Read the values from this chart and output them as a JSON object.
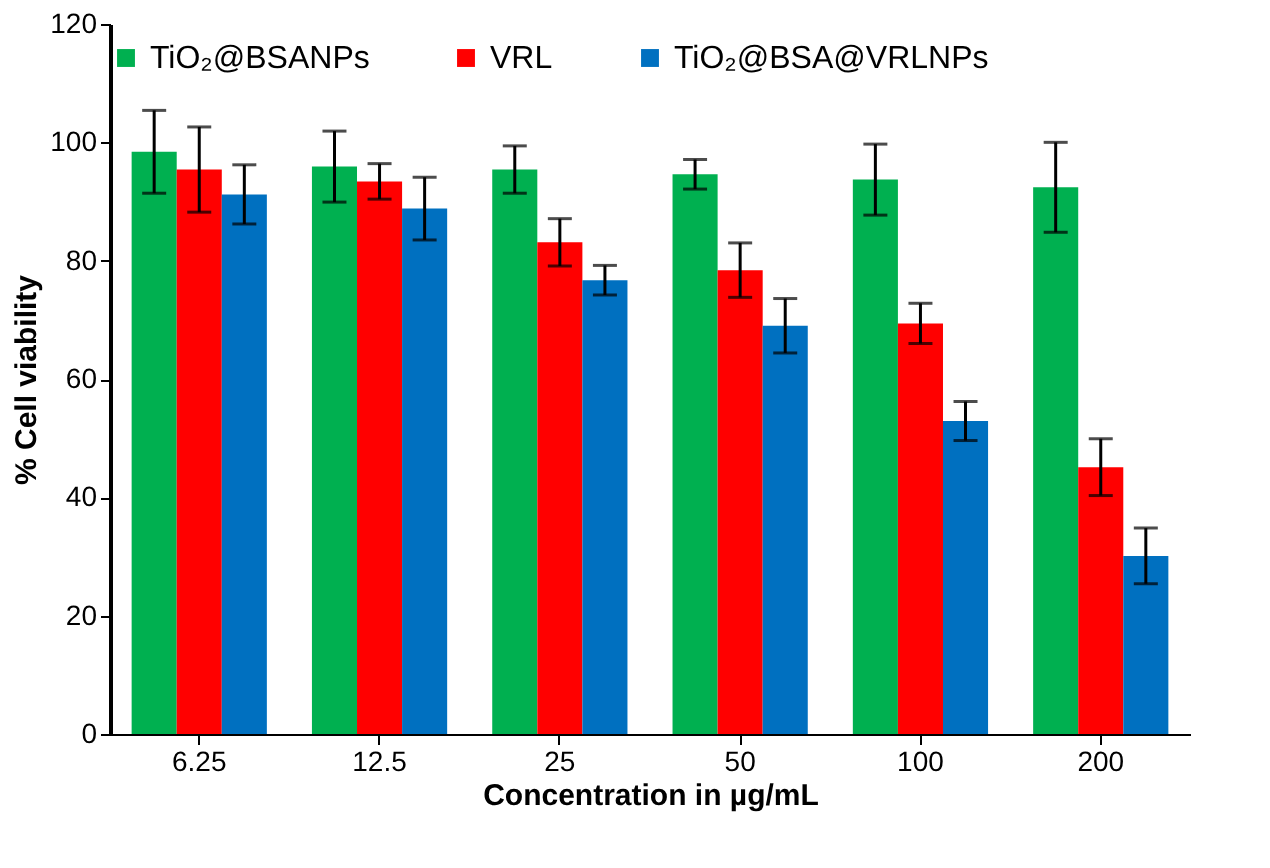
{
  "chart_data": {
    "type": "bar",
    "xlabel": "Concentration in µg/mL",
    "ylabel": "% Cell viability",
    "categories": [
      "6.25",
      "12.5",
      "25",
      "50",
      "100",
      "200"
    ],
    "series": [
      {
        "name": "TiO₂@BSANPs",
        "color": "#00b050",
        "values": [
          98.4,
          95.9,
          95.4,
          94.6,
          93.7,
          92.4
        ],
        "errors": [
          7,
          6,
          4,
          2.5,
          6,
          7.6
        ]
      },
      {
        "name": "VRL",
        "color": "#ff0000",
        "values": [
          95.4,
          93.4,
          83.1,
          78.4,
          69.4,
          45.1
        ],
        "errors": [
          7.2,
          3,
          4,
          4.6,
          3.4,
          4.8
        ]
      },
      {
        "name": "TiO₂@BSA@VRLNPs",
        "color": "#0070c0",
        "values": [
          91.2,
          88.8,
          76.7,
          69,
          52.9,
          30.1
        ],
        "errors": [
          5,
          5.3,
          2.5,
          4.6,
          3.3,
          4.7
        ]
      }
    ],
    "ylim": [
      0,
      120
    ],
    "yticks": [
      0,
      20,
      40,
      60,
      80,
      100,
      120
    ],
    "grid": false,
    "legend": "top"
  }
}
